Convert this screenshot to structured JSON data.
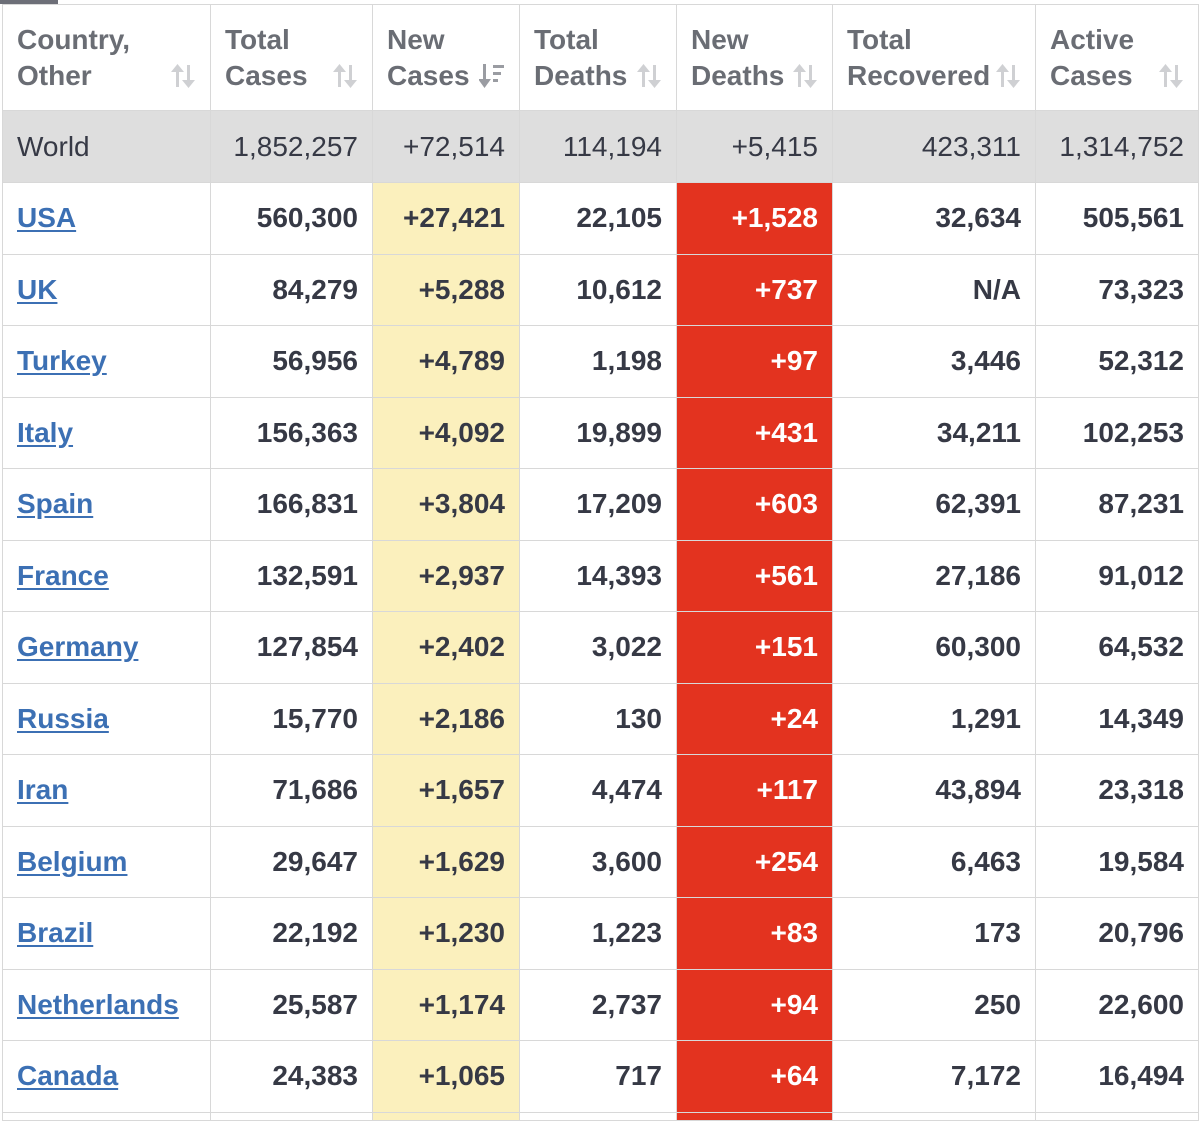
{
  "headers": [
    {
      "line1": "Country,",
      "line2": "Other",
      "icon": "sort-arrows-icon"
    },
    {
      "line1": "Total",
      "line2": "Cases",
      "icon": "sort-arrows-icon"
    },
    {
      "line1": "New",
      "line2": "Cases",
      "icon": "sort-descending-icon"
    },
    {
      "line1": "Total",
      "line2": "Deaths",
      "icon": "sort-arrows-icon"
    },
    {
      "line1": "New",
      "line2": "Deaths",
      "icon": "sort-arrows-icon"
    },
    {
      "line1": "Total",
      "line2": "Recovered",
      "icon": "sort-arrows-icon"
    },
    {
      "line1": "Active",
      "line2": "Cases",
      "icon": "sort-arrows-icon"
    }
  ],
  "colors": {
    "link": "#3c70b4",
    "new_cases_highlight": "#fbf0bd",
    "new_deaths_highlight": "#e3331f",
    "world_row": "#dedede",
    "header_text": "#6a6d74"
  },
  "world": {
    "country": "World",
    "total_cases": "1,852,257",
    "new_cases": "+72,514",
    "total_deaths": "114,194",
    "new_deaths": "+5,415",
    "total_recovered": "423,311",
    "active_cases": "1,314,752"
  },
  "rows": [
    {
      "country": "USA",
      "total_cases": "560,300",
      "new_cases": "+27,421",
      "total_deaths": "22,105",
      "new_deaths": "+1,528",
      "total_recovered": "32,634",
      "active_cases": "505,561"
    },
    {
      "country": "UK",
      "total_cases": "84,279",
      "new_cases": "+5,288",
      "total_deaths": "10,612",
      "new_deaths": "+737",
      "total_recovered": "N/A",
      "active_cases": "73,323"
    },
    {
      "country": "Turkey",
      "total_cases": "56,956",
      "new_cases": "+4,789",
      "total_deaths": "1,198",
      "new_deaths": "+97",
      "total_recovered": "3,446",
      "active_cases": "52,312"
    },
    {
      "country": "Italy",
      "total_cases": "156,363",
      "new_cases": "+4,092",
      "total_deaths": "19,899",
      "new_deaths": "+431",
      "total_recovered": "34,211",
      "active_cases": "102,253"
    },
    {
      "country": "Spain",
      "total_cases": "166,831",
      "new_cases": "+3,804",
      "total_deaths": "17,209",
      "new_deaths": "+603",
      "total_recovered": "62,391",
      "active_cases": "87,231"
    },
    {
      "country": "France",
      "total_cases": "132,591",
      "new_cases": "+2,937",
      "total_deaths": "14,393",
      "new_deaths": "+561",
      "total_recovered": "27,186",
      "active_cases": "91,012"
    },
    {
      "country": "Germany",
      "total_cases": "127,854",
      "new_cases": "+2,402",
      "total_deaths": "3,022",
      "new_deaths": "+151",
      "total_recovered": "60,300",
      "active_cases": "64,532"
    },
    {
      "country": "Russia",
      "total_cases": "15,770",
      "new_cases": "+2,186",
      "total_deaths": "130",
      "new_deaths": "+24",
      "total_recovered": "1,291",
      "active_cases": "14,349"
    },
    {
      "country": "Iran",
      "total_cases": "71,686",
      "new_cases": "+1,657",
      "total_deaths": "4,474",
      "new_deaths": "+117",
      "total_recovered": "43,894",
      "active_cases": "23,318"
    },
    {
      "country": "Belgium",
      "total_cases": "29,647",
      "new_cases": "+1,629",
      "total_deaths": "3,600",
      "new_deaths": "+254",
      "total_recovered": "6,463",
      "active_cases": "19,584"
    },
    {
      "country": "Brazil",
      "total_cases": "22,192",
      "new_cases": "+1,230",
      "total_deaths": "1,223",
      "new_deaths": "+83",
      "total_recovered": "173",
      "active_cases": "20,796"
    },
    {
      "country": "Netherlands",
      "total_cases": "25,587",
      "new_cases": "+1,174",
      "total_deaths": "2,737",
      "new_deaths": "+94",
      "total_recovered": "250",
      "active_cases": "22,600"
    },
    {
      "country": "Canada",
      "total_cases": "24,383",
      "new_cases": "+1,065",
      "total_deaths": "717",
      "new_deaths": "+64",
      "total_recovered": "7,172",
      "active_cases": "16,494"
    }
  ]
}
